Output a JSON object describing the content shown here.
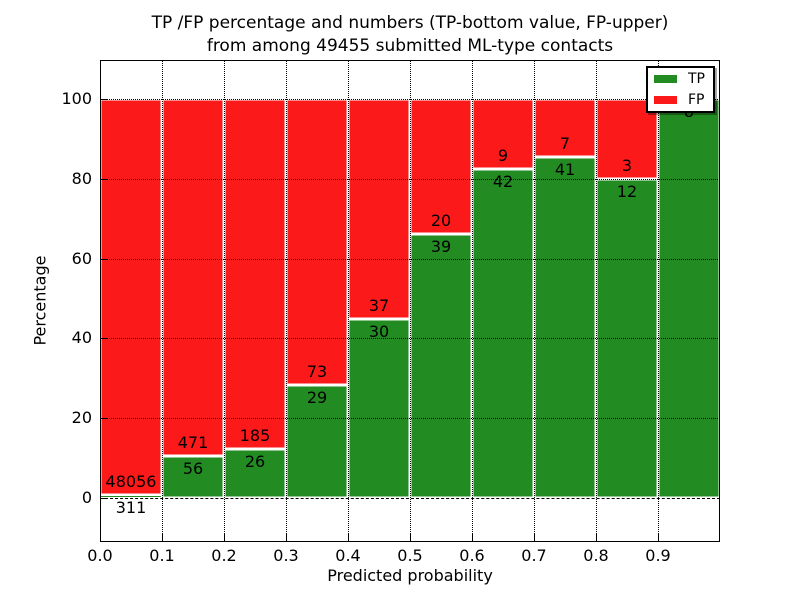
{
  "title": {
    "line1": "TP /FP percentage and numbers (TP-bottom value, FP-upper)",
    "line2": "from among 49455 submitted ML-type contacts"
  },
  "axes": {
    "ylabel": "Percentage",
    "xlabel": "Predicted probability",
    "yticks": [
      0,
      20,
      40,
      60,
      80,
      100
    ],
    "xticks": [
      "0.0",
      "0.1",
      "0.2",
      "0.3",
      "0.4",
      "0.5",
      "0.6",
      "0.7",
      "0.8",
      "0.9"
    ]
  },
  "legend": {
    "items": [
      {
        "label": "TP",
        "color": "#228b22"
      },
      {
        "label": "FP",
        "color": "#fb1919"
      }
    ],
    "position": "upper right"
  },
  "colors": {
    "tp": "#228b22",
    "fp": "#fb1919",
    "grid": "#000000",
    "frame": "#000000",
    "background": "#ffffff"
  },
  "chart_data": {
    "type": "bar",
    "stacked": true,
    "normalized_to_percent": true,
    "title": "TP /FP percentage and numbers (TP-bottom value, FP-upper) from among 49455 submitted ML-type contacts",
    "xlabel": "Predicted probability",
    "ylabel": "Percentage",
    "total_contacts": 49455,
    "categories": [
      "0.0-0.1",
      "0.1-0.2",
      "0.2-0.3",
      "0.3-0.4",
      "0.4-0.5",
      "0.5-0.6",
      "0.6-0.7",
      "0.7-0.8",
      "0.8-0.9",
      "0.9-1.0"
    ],
    "bin_left_edges": [
      0.0,
      0.1,
      0.2,
      0.3,
      0.4,
      0.5,
      0.6,
      0.7,
      0.8,
      0.9
    ],
    "series": [
      {
        "name": "TP",
        "counts": [
          311,
          56,
          26,
          29,
          30,
          39,
          42,
          41,
          12,
          8
        ]
      },
      {
        "name": "FP",
        "counts": [
          48056,
          471,
          185,
          73,
          37,
          20,
          9,
          7,
          3,
          0
        ]
      }
    ],
    "tp_percent": [
      0.6,
      10.6,
      12.3,
      28.4,
      44.8,
      66.1,
      82.4,
      85.4,
      80.0,
      100.0
    ],
    "xlim": [
      0.0,
      1.0
    ],
    "ylim": [
      -11,
      110
    ],
    "grid": true,
    "gridstyle": "dotted",
    "legend_position": "upper right"
  }
}
